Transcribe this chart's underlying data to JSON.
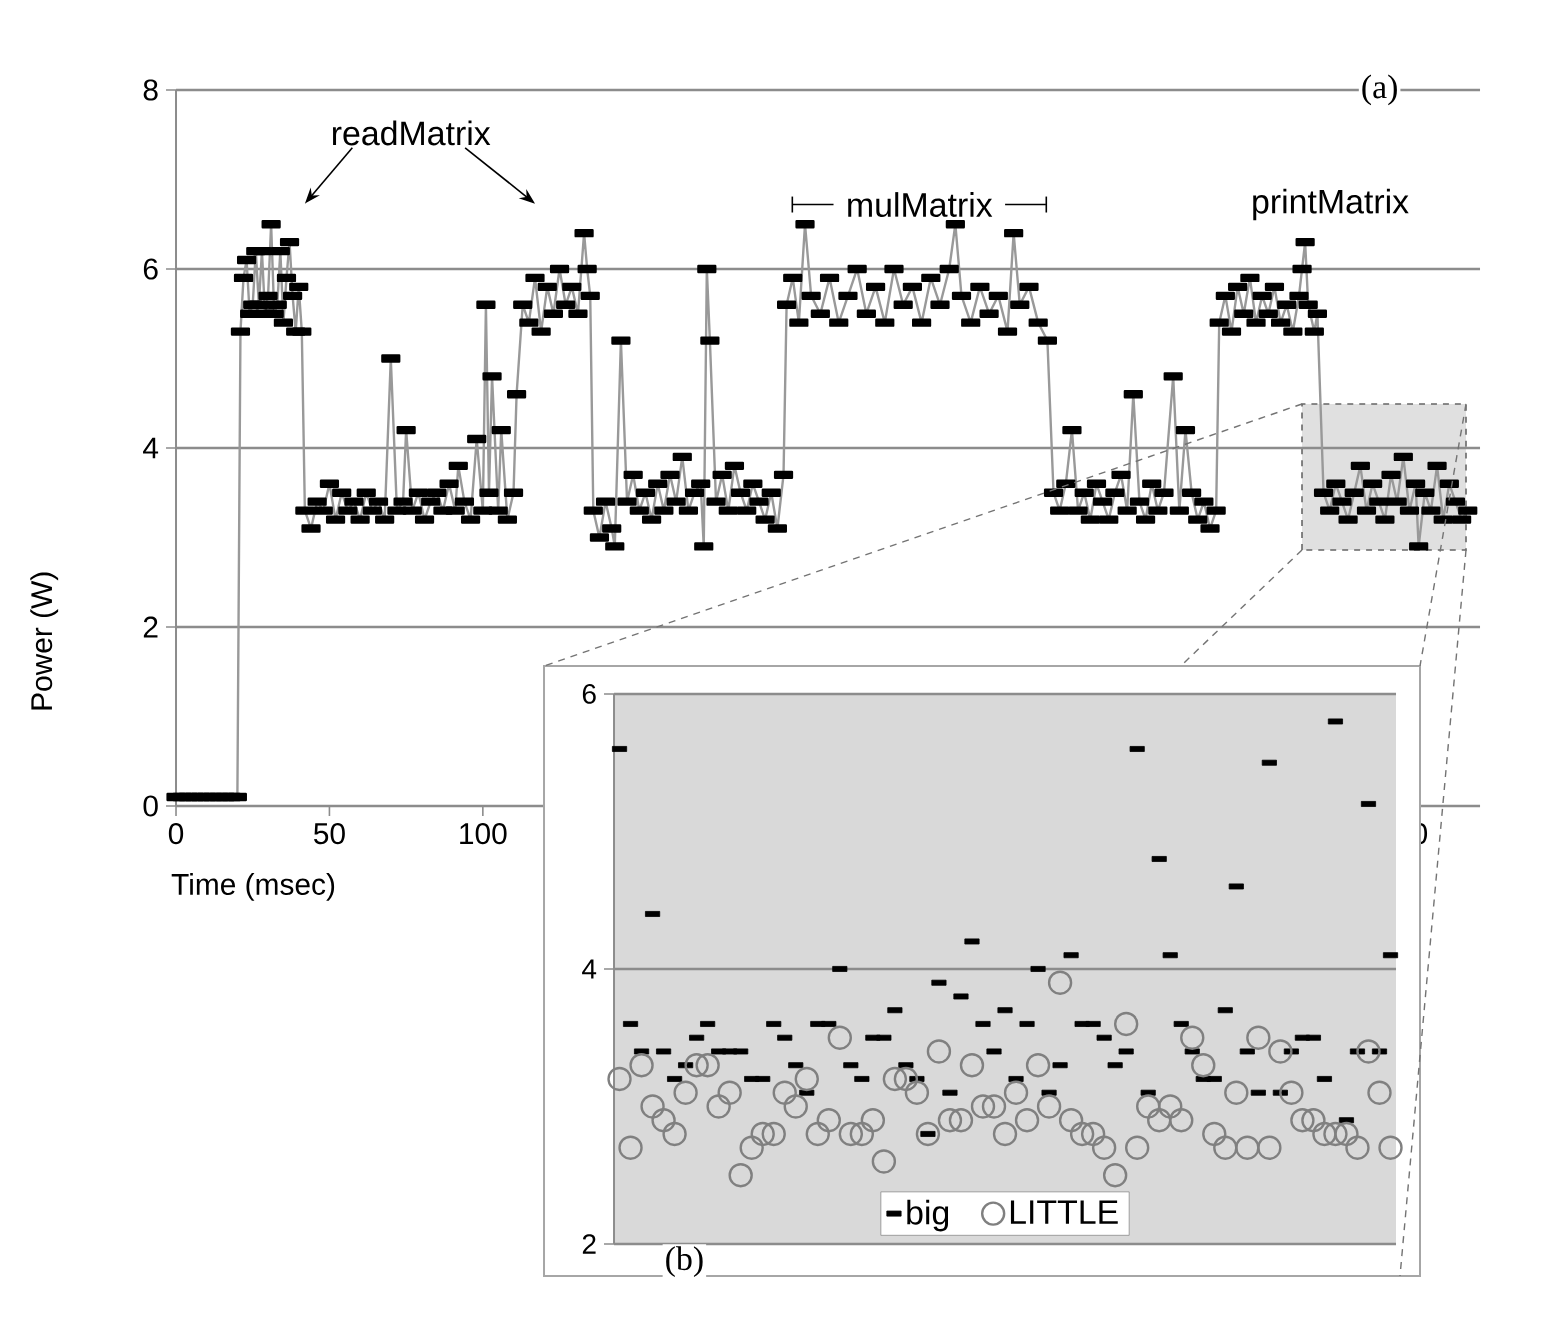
{
  "chart_data": [
    {
      "type": "line",
      "xlabel": "Time (msec)",
      "ylabel": "Power (W)",
      "annotations": [
        "readMatrix",
        "mulMatrix",
        "printMatrix",
        "(a)"
      ],
      "series": [
        {
          "color": "#000000",
          "x": [
            0,
            2,
            4,
            6,
            8,
            10,
            12,
            14,
            16,
            18,
            20,
            21,
            22,
            23,
            24,
            25,
            26,
            27,
            28,
            29,
            30,
            31,
            32,
            33,
            34,
            35,
            36,
            37,
            38,
            39,
            40,
            41,
            42,
            44,
            46,
            48,
            50,
            52,
            54,
            56,
            58,
            60,
            62,
            64,
            66,
            68,
            70,
            72,
            74,
            75,
            77,
            79,
            81,
            83,
            85,
            87,
            89,
            91,
            92,
            94,
            96,
            98,
            100,
            101,
            102,
            103,
            105,
            106,
            108,
            110,
            111,
            113,
            115,
            117,
            119,
            121,
            123,
            125,
            127,
            129,
            131,
            133,
            134,
            135,
            136,
            138,
            140,
            142,
            143,
            145,
            147,
            149,
            151,
            153,
            155,
            157,
            159,
            161,
            163,
            165,
            167,
            169,
            171,
            172,
            173,
            174,
            176,
            178,
            180,
            182,
            184,
            186,
            188,
            190,
            192,
            194,
            196,
            198,
            199,
            201,
            203,
            205,
            207,
            210,
            213,
            216,
            219,
            222,
            225,
            228,
            231,
            234,
            237,
            240,
            243,
            246,
            249,
            252,
            254,
            256,
            259,
            262,
            265,
            268,
            271,
            273,
            275,
            278,
            281,
            284,
            286,
            288,
            290,
            292,
            294,
            296,
            298,
            300,
            302,
            304,
            306,
            308,
            310,
            312,
            314,
            316,
            318,
            320,
            322,
            325,
            327,
            329,
            331,
            333,
            335,
            337,
            339,
            340,
            342,
            344,
            346,
            348,
            350,
            352,
            354,
            356,
            358,
            360,
            362,
            364,
            366,
            367,
            368,
            369,
            371,
            372,
            374,
            376,
            378,
            380,
            382,
            384,
            386,
            388,
            390,
            392,
            394,
            396,
            398,
            400,
            402,
            404,
            405,
            407,
            409,
            411,
            413,
            415,
            417,
            419,
            421
          ],
          "values": [
            0.1,
            0.1,
            0.1,
            0.1,
            0.1,
            0.1,
            0.1,
            0.1,
            0.1,
            0.1,
            0.1,
            5.3,
            5.9,
            6.1,
            5.5,
            5.6,
            6.2,
            5.6,
            6.2,
            5.5,
            5.7,
            6.5,
            5.5,
            5.6,
            6.2,
            5.4,
            5.9,
            6.3,
            5.7,
            5.3,
            5.8,
            5.3,
            3.3,
            3.1,
            3.4,
            3.3,
            3.6,
            3.2,
            3.5,
            3.3,
            3.4,
            3.2,
            3.5,
            3.3,
            3.4,
            3.2,
            5.0,
            3.3,
            3.4,
            4.2,
            3.3,
            3.5,
            3.2,
            3.4,
            3.5,
            3.3,
            3.6,
            3.3,
            3.8,
            3.4,
            3.2,
            4.1,
            3.3,
            5.6,
            3.5,
            4.8,
            3.3,
            4.2,
            3.2,
            3.5,
            4.6,
            5.6,
            5.4,
            5.9,
            5.3,
            5.8,
            5.5,
            6.0,
            5.6,
            5.8,
            5.5,
            6.4,
            6.0,
            5.7,
            3.3,
            3.0,
            3.4,
            3.1,
            2.9,
            5.2,
            3.4,
            3.7,
            3.3,
            3.5,
            3.2,
            3.6,
            3.3,
            3.7,
            3.4,
            3.9,
            3.3,
            3.5,
            3.6,
            2.9,
            6.0,
            5.2,
            3.4,
            3.7,
            3.3,
            3.8,
            3.5,
            3.3,
            3.6,
            3.4,
            3.2,
            3.5,
            3.1,
            3.7,
            5.6,
            5.9,
            5.4,
            6.5,
            5.7,
            5.5,
            5.9,
            5.4,
            5.7,
            6.0,
            5.5,
            5.8,
            5.4,
            6.0,
            5.6,
            5.8,
            5.4,
            5.9,
            5.6,
            6.0,
            6.5,
            5.7,
            5.4,
            5.8,
            5.5,
            5.7,
            5.3,
            6.4,
            5.6,
            5.8,
            5.4,
            5.2,
            3.5,
            3.3,
            3.6,
            4.2,
            3.3,
            3.5,
            3.2,
            3.6,
            3.4,
            3.2,
            3.5,
            3.7,
            3.3,
            4.6,
            3.4,
            3.2,
            3.6,
            3.3,
            3.5,
            4.8,
            3.3,
            4.2,
            3.5,
            3.2,
            3.4,
            3.1,
            3.3,
            5.4,
            5.7,
            5.3,
            5.8,
            5.5,
            5.9,
            5.4,
            5.7,
            5.5,
            5.8,
            5.4,
            5.6,
            5.3,
            5.7,
            6.0,
            6.3,
            5.6,
            5.3,
            5.5,
            3.5,
            3.3,
            3.6,
            3.4,
            3.2,
            3.5,
            3.8,
            3.3,
            3.6,
            3.4,
            3.2,
            3.7,
            3.4,
            3.9,
            3.3,
            3.6,
            2.9,
            3.5,
            3.3,
            3.8,
            3.2,
            3.6,
            3.4,
            3.2,
            3.3
          ]
        }
      ],
      "xlim": [
        0,
        425
      ],
      "ylim": [
        0,
        8
      ],
      "xticks": [
        0,
        50,
        100,
        400
      ],
      "yticks": [
        0,
        2,
        4,
        6,
        8
      ],
      "grid": "y",
      "marker": "square",
      "line_style": "solid"
    },
    {
      "type": "scatter",
      "categories": [
        null,
        null,
        null,
        null,
        null,
        null,
        null,
        null,
        null,
        null,
        null,
        null,
        null,
        null,
        null,
        null,
        null,
        null,
        null,
        null,
        null,
        null,
        null,
        null,
        null,
        null,
        null,
        null,
        null,
        null,
        null,
        null,
        null,
        null,
        null,
        null,
        null,
        null,
        null,
        null,
        null,
        null,
        null,
        null,
        null,
        null,
        null,
        null,
        null,
        null,
        null,
        null,
        null,
        null,
        null,
        null,
        null,
        null,
        null,
        null,
        null,
        null,
        null,
        null,
        null,
        null,
        null,
        null,
        null,
        null,
        null
      ],
      "series": [
        {
          "name": "big",
          "color": "#000000",
          "marker": "square",
          "values": [
            5.6,
            3.6,
            3.4,
            4.4,
            3.4,
            3.2,
            3.3,
            3.5,
            3.6,
            3.4,
            3.4,
            3.4,
            3.2,
            3.2,
            3.6,
            3.5,
            3.3,
            3.1,
            3.6,
            3.6,
            4.0,
            3.3,
            3.2,
            3.5,
            3.5,
            3.7,
            3.3,
            3.2,
            2.8,
            3.9,
            3.1,
            3.8,
            4.2,
            3.6,
            3.4,
            3.7,
            3.2,
            3.6,
            4.0,
            3.1,
            3.3,
            4.1,
            3.6,
            3.6,
            3.5,
            3.3,
            3.4,
            5.6,
            3.1,
            4.8,
            4.1,
            3.6,
            3.4,
            3.2,
            3.2,
            3.7,
            4.6,
            3.4,
            3.1,
            5.5,
            3.1,
            3.4,
            3.5,
            3.5,
            3.2,
            5.8,
            2.9,
            3.4,
            5.2,
            3.4,
            4.1
          ]
        },
        {
          "name": "LITTLE",
          "color": "#808080",
          "marker": "circle",
          "values": [
            3.2,
            2.7,
            3.3,
            3.0,
            2.9,
            2.8,
            3.1,
            3.3,
            3.3,
            3.0,
            3.1,
            2.5,
            2.7,
            2.8,
            2.8,
            3.1,
            3.0,
            3.2,
            2.8,
            2.9,
            3.5,
            2.8,
            2.8,
            2.9,
            2.6,
            3.2,
            3.2,
            3.1,
            2.8,
            3.4,
            2.9,
            2.9,
            3.3,
            3.0,
            3.0,
            2.8,
            3.1,
            2.9,
            3.3,
            3.0,
            3.9,
            2.9,
            2.8,
            2.8,
            2.7,
            2.5,
            3.6,
            2.7,
            3.0,
            2.9,
            3.0,
            2.9,
            3.5,
            3.3,
            2.8,
            2.7,
            3.1,
            2.7,
            3.5,
            2.7,
            3.4,
            3.1,
            2.9,
            2.9,
            2.8,
            2.8,
            2.8,
            2.7,
            3.4,
            3.1,
            2.7
          ]
        }
      ],
      "ylim": [
        2,
        6
      ],
      "yticks": [
        2,
        4,
        6
      ],
      "grid": "y",
      "legend": "bottom",
      "tick_labels": "y",
      "annotations": [
        "(b)"
      ]
    }
  ]
}
